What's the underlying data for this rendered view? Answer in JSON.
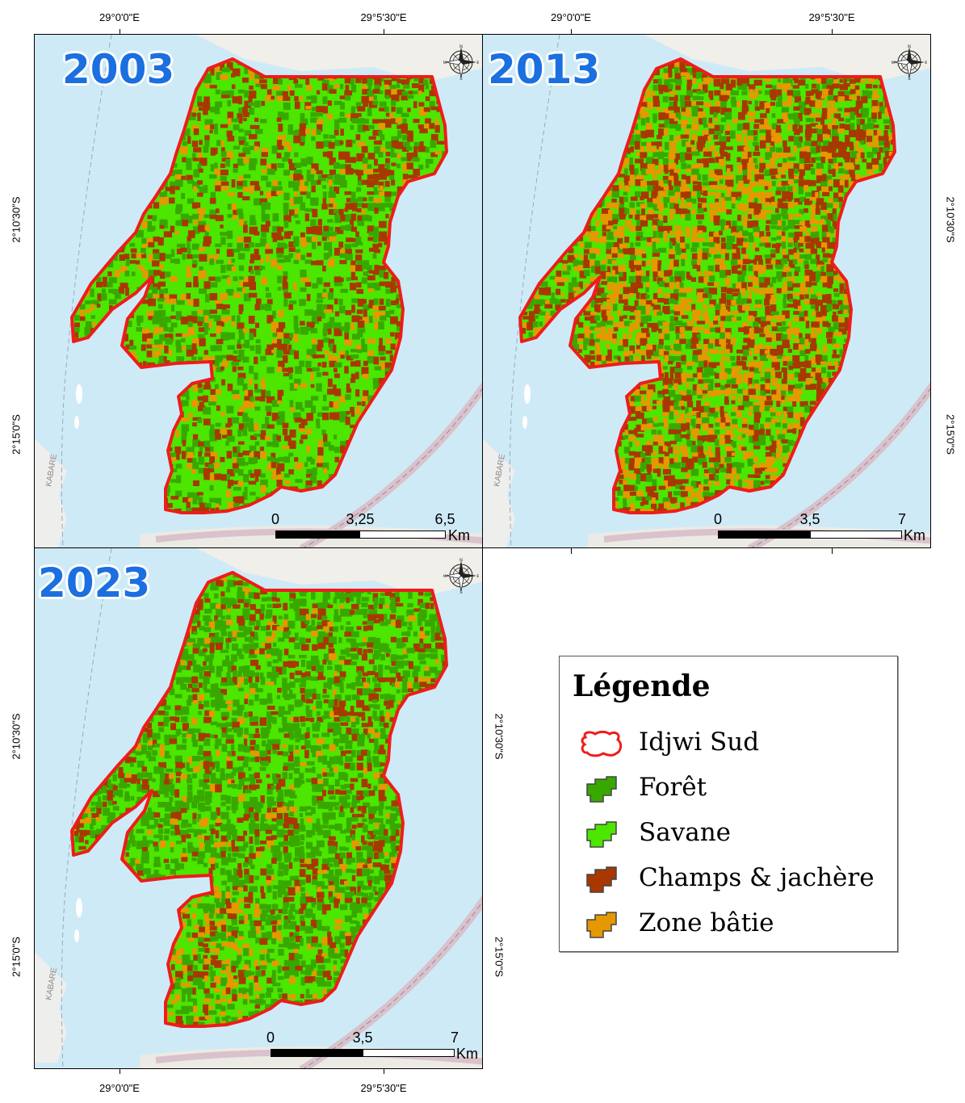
{
  "coordinates": {
    "lon_west": "29°0'0\"E",
    "lon_east": "29°5'30\"E",
    "lat_north": "2°10'30\"S",
    "lat_south": "2°15'0\"S"
  },
  "panels": [
    {
      "year": "2003",
      "scale": {
        "zero": "0",
        "mid": "3,25",
        "max": "6,5",
        "unit": "Km"
      }
    },
    {
      "year": "2013",
      "scale": {
        "zero": "0",
        "mid": "3,5",
        "max": "7",
        "unit": "Km"
      }
    },
    {
      "year": "2023",
      "scale": {
        "zero": "0",
        "mid": "3,5",
        "max": "7",
        "unit": "Km"
      }
    }
  ],
  "map_labels": {
    "territory": "KABARE"
  },
  "compass": {
    "n": "N",
    "s": "S",
    "e": "E",
    "w": "W"
  },
  "legend": {
    "title": "Légende",
    "items": [
      {
        "label": "Idjwi Sud",
        "color": "#ee1c1c",
        "kind": "outline"
      },
      {
        "label": "Forêt",
        "color": "#38a800",
        "kind": "fill"
      },
      {
        "label": "Savane",
        "color": "#4ce600",
        "kind": "fill"
      },
      {
        "label": "Champs & jachère",
        "color": "#a83800",
        "kind": "fill"
      },
      {
        "label": "Zone bâtie",
        "color": "#e69800",
        "kind": "fill"
      }
    ]
  },
  "land_cover_mix": [
    {
      "year": "2003",
      "foret": 0.22,
      "savane": 0.5,
      "champs": 0.2,
      "batie": 0.08
    },
    {
      "year": "2013",
      "foret": 0.2,
      "savane": 0.3,
      "champs": 0.28,
      "batie": 0.22
    },
    {
      "year": "2023",
      "foret": 0.4,
      "savane": 0.36,
      "champs": 0.17,
      "batie": 0.07
    }
  ]
}
